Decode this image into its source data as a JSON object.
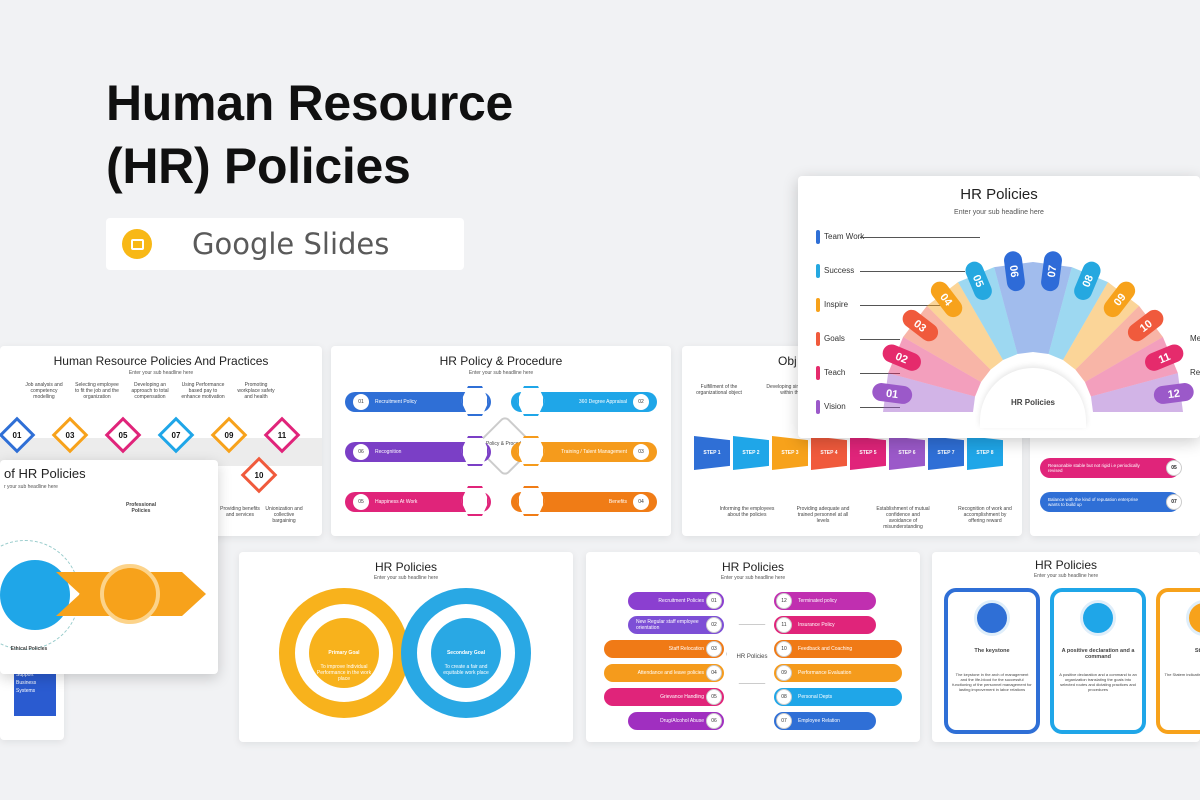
{
  "hero": {
    "title_line1": "Human Resource",
    "title_line2": "(HR) Policies",
    "badge_label": "Google Slides",
    "badge_color": "#f8b816"
  },
  "slides": {
    "practices": {
      "title": "Human Resource Policies And Practices",
      "subtitle": "Enter your sub headline here",
      "steps": [
        "01",
        "03",
        "05",
        "07",
        "09",
        "11",
        "10"
      ],
      "notes": [
        "Job analysis and competency modelling",
        "Selecting employee to fit the job and the organization",
        "Developing an approach to total compensation",
        "Using Performance based pay to enhance motivation",
        "Promoting workplace safety and health",
        "Providing benefits and services",
        "Unionization and collective bargaining"
      ]
    },
    "procedure": {
      "title": "HR Policy & Procedure",
      "subtitle": "Enter your sub headline here",
      "center": "HR Policy & Procedure",
      "items": [
        {
          "n": "01",
          "label": "Recruitment Policy",
          "color": "#2f6fd6"
        },
        {
          "n": "02",
          "label": "360 Degree Appraisal",
          "color": "#1fa6e8"
        },
        {
          "n": "06",
          "label": "Recognition",
          "color": "#7b3fc6"
        },
        {
          "n": "03",
          "label": "Training / Talent Management",
          "color": "#f59b1c"
        },
        {
          "n": "05",
          "label": "Happiness At Work",
          "color": "#e0247a"
        },
        {
          "n": "04",
          "label": "Benefits",
          "color": "#f07c16"
        }
      ]
    },
    "objectives": {
      "title": "Obj",
      "steps": [
        "STEP 1",
        "STEP 2",
        "STEP 3",
        "STEP 4",
        "STEP 5",
        "STEP 6",
        "STEP 7",
        "STEP 8"
      ],
      "notes": [
        "Fulfillment of the organizational object",
        "Developing sincere sense within the em",
        "Informing the employees about the policies",
        "Providing adequate and trained personnel at all levels",
        "Establishment of mutual confidence and avoidance of misunderstanding",
        "Recognition of work and accomplishment by offering reward"
      ]
    },
    "featured": {
      "title": "HR Policies",
      "subtitle": "Enter your sub headline here",
      "center": "HR Policies",
      "left_labels": [
        "Team Work",
        "Success",
        "Inspire",
        "Goals",
        "Teach",
        "Vision"
      ],
      "right_labels": [
        "Med",
        "Re"
      ],
      "fan": [
        {
          "n": "01",
          "color": "#9b59c9"
        },
        {
          "n": "02",
          "color": "#e52b6c"
        },
        {
          "n": "03",
          "color": "#f05a3c"
        },
        {
          "n": "04",
          "color": "#f7a21b"
        },
        {
          "n": "05",
          "color": "#25a8e0"
        },
        {
          "n": "06",
          "color": "#2e6bd8"
        },
        {
          "n": "07",
          "color": "#2e6bd8"
        },
        {
          "n": "08",
          "color": "#25a8e0"
        },
        {
          "n": "09",
          "color": "#f7a21b"
        },
        {
          "n": "10",
          "color": "#f05a3c"
        },
        {
          "n": "11",
          "color": "#e52b6c"
        },
        {
          "n": "12",
          "color": "#9b59c9"
        }
      ]
    },
    "right_partial": {
      "rows": [
        {
          "n": "05",
          "text": "Reasonable stable but not rigid i.e periodically revised",
          "color": "#e0247a"
        },
        {
          "n": "07",
          "text": "Balance with the kind of reputation enterprise wants to build up",
          "color": "#2f6fd6"
        }
      ]
    },
    "professional": {
      "title": "of HR Policies",
      "subtitle": "r your sub headline here",
      "top_label": "Professional Policies",
      "bottom_label": "Ethical Policies"
    },
    "goals": {
      "title": "HR Policies",
      "subtitle": "Enter your sub headline here",
      "primary": "Primary Goal",
      "primary_text": "To improve Individual Performance in the work place",
      "secondary": "Secondary Goal",
      "secondary_text": "To create a fair and equitable work place"
    },
    "handling": {
      "title": "HR Policies",
      "subtitle": "Enter your sub headline here",
      "center": "HR Policies",
      "left": [
        {
          "n": "01",
          "label": "Recruitment Policies",
          "color": "#8b3fd0"
        },
        {
          "n": "02",
          "label": "New Regular staff employee orientation",
          "color": "#7d4fd6"
        },
        {
          "n": "03",
          "label": "Staff Relocation",
          "color": "#f07a16"
        },
        {
          "n": "04",
          "label": "Attendance and leave policies",
          "color": "#f59b1c"
        },
        {
          "n": "05",
          "label": "Grievance Handling",
          "color": "#e0247a"
        },
        {
          "n": "06",
          "label": "Drug/Alcohol Abuse",
          "color": "#a02fc0"
        }
      ],
      "right": [
        {
          "n": "12",
          "label": "Terminated policy",
          "color": "#c02fb0"
        },
        {
          "n": "11",
          "label": "Insurance Policy",
          "color": "#e0247a"
        },
        {
          "n": "10",
          "label": "Feedback and Coaching",
          "color": "#f07a16"
        },
        {
          "n": "09",
          "label": "Performance Evaluation",
          "color": "#f59b1c"
        },
        {
          "n": "08",
          "label": "Personal Depts",
          "color": "#1fa6e8"
        },
        {
          "n": "07",
          "label": "Employee Relation",
          "color": "#2f6fd6"
        }
      ]
    },
    "keystone": {
      "title": "HR Policies",
      "subtitle": "Enter your sub headline here",
      "cards": [
        {
          "h": "The keystone",
          "p": "The keystone in the arch of management and the life-blood for the successful functioning of the personnel management for lasting improvement in labor relations"
        },
        {
          "h": "A positive declaration and a command",
          "p": "A positive declaration and a command to an organization translating the goals into selected routes and dictating practices and procedures"
        },
        {
          "h": "Statem",
          "p": "The Statem indicating a general sou thinking"
        }
      ]
    },
    "left_partial": {
      "items": [
        "Vis",
        "Support",
        "Business",
        "Systems"
      ]
    }
  }
}
